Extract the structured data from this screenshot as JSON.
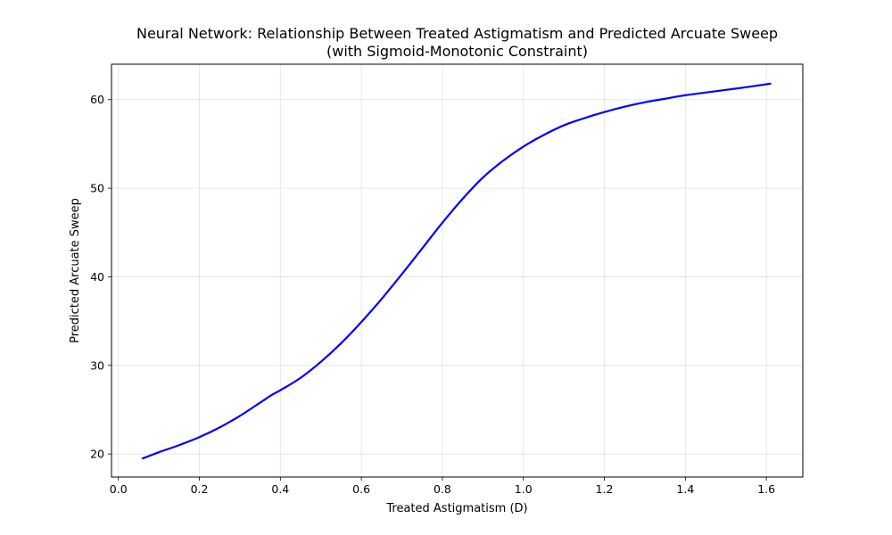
{
  "chart_data": {
    "type": "line",
    "title_line1": "Neural Network: Relationship Between Treated Astigmatism and Predicted Arcuate Sweep",
    "title_line2": "(with Sigmoid-Monotonic Constraint)",
    "xlabel": "Treated Astigmatism (D)",
    "ylabel": "Predicted Arcuate Sweep",
    "xlim": [
      -0.017,
      1.69
    ],
    "ylim": [
      17.4,
      64.0
    ],
    "xticks": [
      0.0,
      0.2,
      0.4,
      0.6,
      0.8,
      1.0,
      1.2,
      1.4,
      1.6
    ],
    "xtick_labels": [
      "0.0",
      "0.2",
      "0.4",
      "0.6",
      "0.8",
      "1.0",
      "1.2",
      "1.4",
      "1.6"
    ],
    "yticks": [
      20,
      30,
      40,
      50,
      60
    ],
    "ytick_labels": [
      "20",
      "30",
      "40",
      "50",
      "60"
    ],
    "grid": true,
    "line_color": "#0000ff",
    "series": [
      {
        "x": [
          0.06,
          0.1,
          0.15,
          0.2,
          0.25,
          0.3,
          0.35,
          0.38,
          0.4,
          0.45,
          0.5,
          0.55,
          0.6,
          0.65,
          0.7,
          0.75,
          0.8,
          0.85,
          0.9,
          0.95,
          1.0,
          1.05,
          1.1,
          1.15,
          1.2,
          1.25,
          1.3,
          1.35,
          1.4,
          1.45,
          1.5,
          1.55,
          1.61
        ],
        "y": [
          19.5,
          20.2,
          21.0,
          21.9,
          23.0,
          24.3,
          25.8,
          26.7,
          27.2,
          28.6,
          30.4,
          32.5,
          34.9,
          37.5,
          40.3,
          43.2,
          46.1,
          48.8,
          51.2,
          53.1,
          54.7,
          56.0,
          57.1,
          57.9,
          58.6,
          59.2,
          59.7,
          60.1,
          60.5,
          60.8,
          61.1,
          61.4,
          61.8
        ]
      }
    ]
  }
}
